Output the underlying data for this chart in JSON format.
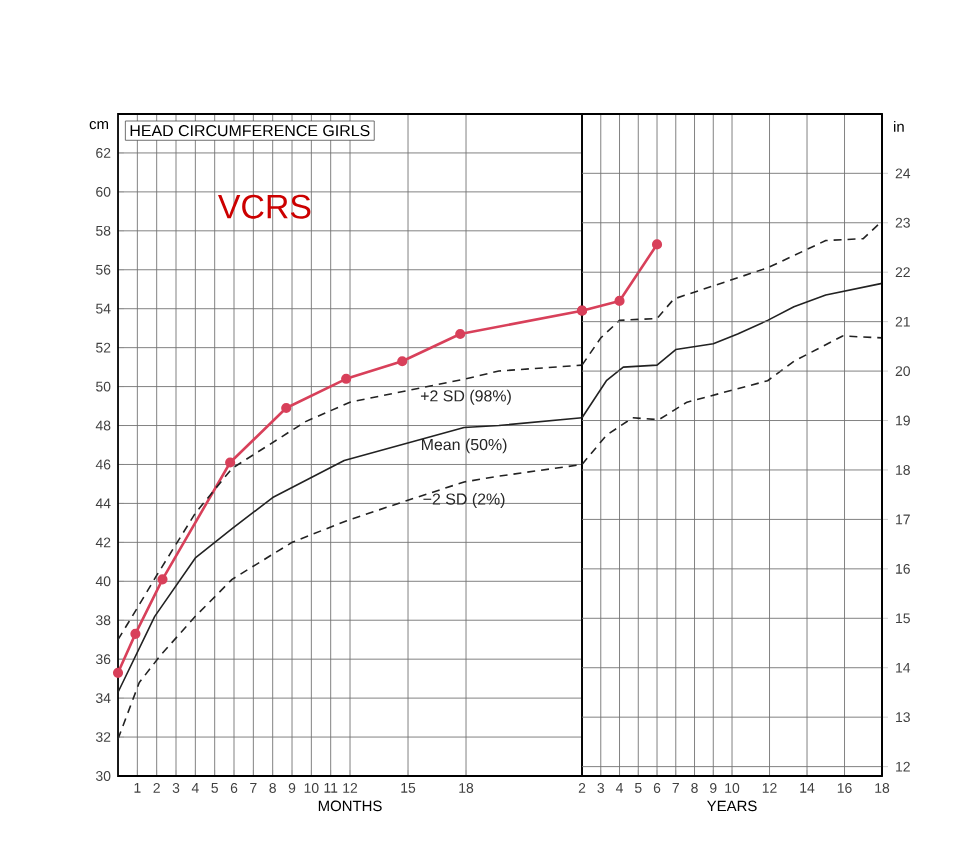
{
  "chart_data": [
    {
      "type": "line",
      "title": "HEAD CIRCUMFERENCE GIRLS",
      "xlabel": "MONTHS",
      "ylabel": "cm",
      "annotations": [
        "VCRS"
      ],
      "xlim": [
        0,
        24
      ],
      "xticks": [
        1,
        2,
        3,
        4,
        5,
        6,
        7,
        8,
        9,
        10,
        11,
        12,
        15,
        18
      ],
      "ylim": [
        30,
        64
      ],
      "yticks": [
        30,
        32,
        34,
        36,
        38,
        40,
        42,
        44,
        46,
        48,
        50,
        52,
        54,
        56,
        58,
        60,
        62
      ],
      "grid": true,
      "series": [
        {
          "color": "#d8405a",
          "marker": "circle",
          "line_style": "solid",
          "x": [
            0,
            0.9,
            2.3,
            5.8,
            8.7,
            11.8,
            14.7,
            17.7,
            24
          ],
          "values": [
            35.3,
            37.3,
            40.1,
            46.1,
            48.9,
            50.4,
            51.3,
            52.7,
            53.9
          ]
        },
        {
          "name": "+2 SD (98%)",
          "color": "#222222",
          "marker": "none",
          "line_style": "dashed",
          "x": [
            0,
            1.1,
            2,
            4,
            5.9,
            9.7,
            12,
            18,
            19.7,
            24
          ],
          "values": [
            37.0,
            38.8,
            40.3,
            43.5,
            45.8,
            48.2,
            49.2,
            50.4,
            50.8,
            51.1
          ]
        },
        {
          "name": "Mean (50%)",
          "color": "#222222",
          "marker": "none",
          "line_style": "solid",
          "x": [
            0,
            1.9,
            4,
            5.9,
            8,
            11.7,
            17.9,
            19.7,
            24
          ],
          "values": [
            34.3,
            38.2,
            41.2,
            42.7,
            44.3,
            46.2,
            47.9,
            48.0,
            48.4
          ]
        },
        {
          "name": "−2 SD (2%)",
          "color": "#222222",
          "marker": "none",
          "line_style": "dashed",
          "x": [
            0,
            1.1,
            2.2,
            4,
            5.9,
            9,
            11.8,
            14.8,
            17.9,
            19.7,
            24
          ],
          "values": [
            31.9,
            34.8,
            36.2,
            38.2,
            40.1,
            42.0,
            43.1,
            44.1,
            45.1,
            45.4,
            46.0
          ]
        }
      ]
    },
    {
      "type": "line",
      "xlabel": "YEARS",
      "y2label": "in",
      "xlim": [
        2,
        18
      ],
      "xticks": [
        2,
        3,
        4,
        5,
        6,
        7,
        8,
        9,
        10,
        12,
        14,
        16,
        18
      ],
      "ylim": [
        30,
        64
      ],
      "y2lim": [
        11.81,
        25.2
      ],
      "y2ticks": [
        12,
        13,
        14,
        15,
        16,
        17,
        18,
        19,
        20,
        21,
        22,
        23,
        24
      ],
      "grid": true,
      "series": [
        {
          "color": "#d8405a",
          "marker": "circle",
          "line_style": "solid",
          "x": [
            2,
            4,
            6
          ],
          "values": [
            53.9,
            54.4,
            57.3
          ]
        },
        {
          "color": "#222222",
          "marker": "none",
          "line_style": "dashed",
          "x": [
            2,
            3,
            4,
            6,
            6.9,
            11.9,
            15,
            17,
            18
          ],
          "values": [
            51.1,
            52.5,
            53.4,
            53.5,
            54.5,
            56.1,
            57.5,
            57.6,
            58.5
          ]
        },
        {
          "color": "#222222",
          "marker": "none",
          "line_style": "solid",
          "x": [
            2,
            3.3,
            4.2,
            6,
            7,
            9,
            10.3,
            11.9,
            13.3,
            15,
            18
          ],
          "values": [
            48.4,
            50.3,
            51.0,
            51.1,
            51.9,
            52.2,
            52.7,
            53.4,
            54.1,
            54.7,
            55.3
          ]
        },
        {
          "color": "#222222",
          "marker": "none",
          "line_style": "dashed",
          "x": [
            2,
            3.3,
            4.7,
            6.1,
            7.6,
            11.9,
            13.3,
            15.9,
            18
          ],
          "values": [
            46.0,
            47.5,
            48.4,
            48.3,
            49.2,
            50.3,
            51.3,
            52.6,
            52.5
          ]
        }
      ]
    }
  ]
}
